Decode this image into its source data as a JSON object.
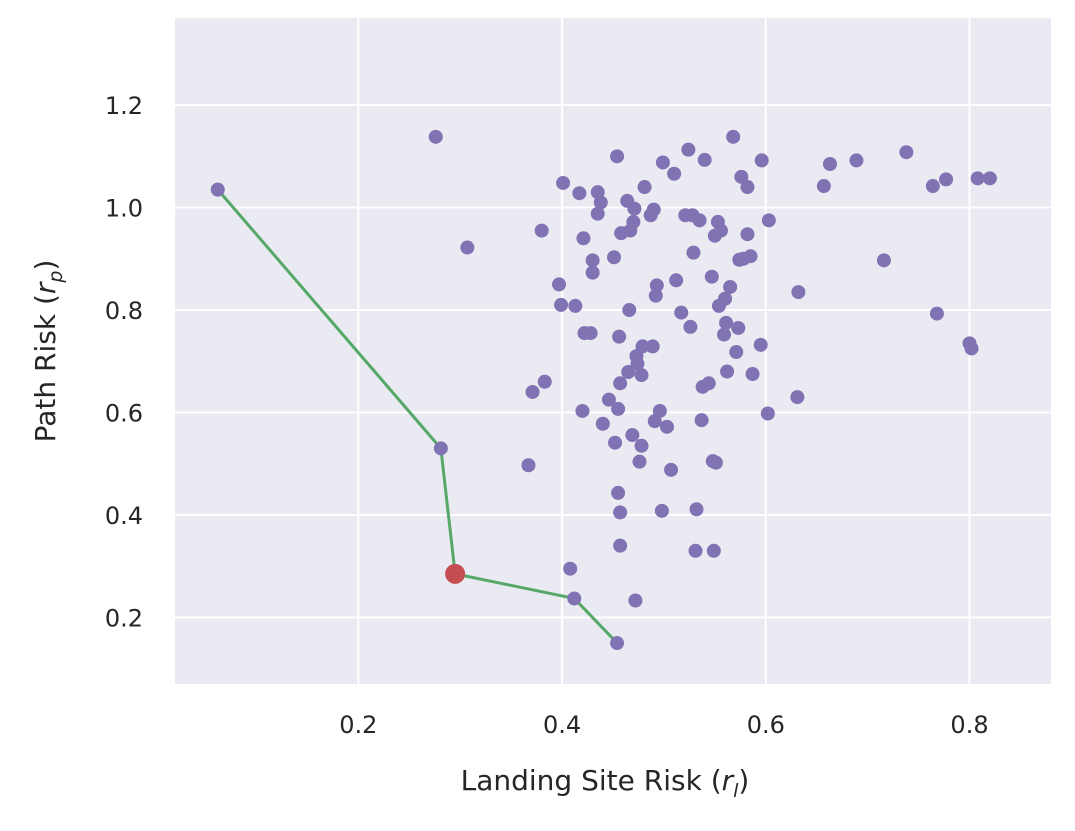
{
  "chart_data": {
    "type": "scatter",
    "title": "",
    "xlabel": "Landing Site Risk (r_l)",
    "xlabel_parts": {
      "main": "Landing Site Risk (",
      "var": "r",
      "sub": "l",
      "close": ")"
    },
    "ylabel": "Path Risk (r_p)",
    "ylabel_parts": {
      "main": "Path Risk (",
      "var": "r",
      "sub": "p",
      "close": ")"
    },
    "xlim": [
      0.02,
      0.88
    ],
    "ylim": [
      0.07,
      1.37
    ],
    "xticks": [
      0.2,
      0.4,
      0.6,
      0.8
    ],
    "xtick_labels": [
      "0.2",
      "0.4",
      "0.6",
      "0.8"
    ],
    "yticks": [
      0.2,
      0.4,
      0.6,
      0.8,
      1.0,
      1.2
    ],
    "ytick_labels": [
      "0.2",
      "0.4",
      "0.6",
      "0.8",
      "1.0",
      "1.2"
    ],
    "grid": true,
    "colors": {
      "background": "#eaeaf2",
      "grid": "#ffffff",
      "points": "#8172b3",
      "frontier": "#55a868",
      "selected": "#c44e52"
    },
    "series": [
      {
        "values": [
          [
            0.062,
            1.035
          ],
          [
            0.276,
            1.138
          ],
          [
            0.307,
            0.922
          ],
          [
            0.367,
            0.497
          ],
          [
            0.371,
            0.64
          ],
          [
            0.38,
            0.955
          ],
          [
            0.383,
            0.66
          ],
          [
            0.397,
            0.85
          ],
          [
            0.399,
            0.81
          ],
          [
            0.401,
            1.048
          ],
          [
            0.408,
            0.295
          ],
          [
            0.413,
            0.808
          ],
          [
            0.417,
            1.028
          ],
          [
            0.42,
            0.603
          ],
          [
            0.421,
            0.94
          ],
          [
            0.422,
            0.755
          ],
          [
            0.428,
            0.755
          ],
          [
            0.43,
            0.873
          ],
          [
            0.43,
            0.897
          ],
          [
            0.435,
            1.03
          ],
          [
            0.435,
            0.988
          ],
          [
            0.438,
            1.01
          ],
          [
            0.44,
            0.578
          ],
          [
            0.446,
            0.625
          ],
          [
            0.451,
            0.903
          ],
          [
            0.452,
            0.541
          ],
          [
            0.454,
            1.1
          ],
          [
            0.455,
            0.607
          ],
          [
            0.455,
            0.443
          ],
          [
            0.456,
            0.748
          ],
          [
            0.457,
            0.405
          ],
          [
            0.457,
            0.34
          ],
          [
            0.457,
            0.657
          ],
          [
            0.458,
            0.95
          ],
          [
            0.464,
            1.013
          ],
          [
            0.465,
            0.679
          ],
          [
            0.466,
            0.8
          ],
          [
            0.467,
            0.955
          ],
          [
            0.469,
            0.556
          ],
          [
            0.47,
            0.972
          ],
          [
            0.471,
            0.998
          ],
          [
            0.472,
            0.233
          ],
          [
            0.473,
            0.71
          ],
          [
            0.474,
            0.695
          ],
          [
            0.476,
            0.504
          ],
          [
            0.478,
            0.535
          ],
          [
            0.478,
            0.673
          ],
          [
            0.479,
            0.729
          ],
          [
            0.481,
            1.04
          ],
          [
            0.487,
            0.985
          ],
          [
            0.489,
            0.729
          ],
          [
            0.49,
            0.996
          ],
          [
            0.491,
            0.583
          ],
          [
            0.492,
            0.828
          ],
          [
            0.493,
            0.848
          ],
          [
            0.496,
            0.603
          ],
          [
            0.498,
            0.408
          ],
          [
            0.499,
            1.088
          ],
          [
            0.503,
            0.572
          ],
          [
            0.507,
            0.488
          ],
          [
            0.51,
            1.066
          ],
          [
            0.512,
            0.858
          ],
          [
            0.517,
            0.795
          ],
          [
            0.521,
            0.985
          ],
          [
            0.524,
            1.113
          ],
          [
            0.526,
            0.767
          ],
          [
            0.528,
            0.985
          ],
          [
            0.529,
            0.912
          ],
          [
            0.531,
            0.33
          ],
          [
            0.532,
            0.411
          ],
          [
            0.535,
            0.975
          ],
          [
            0.537,
            0.585
          ],
          [
            0.538,
            0.65
          ],
          [
            0.54,
            1.093
          ],
          [
            0.544,
            0.657
          ],
          [
            0.547,
            0.865
          ],
          [
            0.548,
            0.505
          ],
          [
            0.549,
            0.33
          ],
          [
            0.55,
            0.945
          ],
          [
            0.551,
            0.502
          ],
          [
            0.553,
            0.972
          ],
          [
            0.554,
            0.808
          ],
          [
            0.556,
            0.955
          ],
          [
            0.559,
            0.752
          ],
          [
            0.56,
            0.822
          ],
          [
            0.561,
            0.775
          ],
          [
            0.562,
            0.68
          ],
          [
            0.565,
            0.845
          ],
          [
            0.568,
            1.138
          ],
          [
            0.571,
            0.718
          ],
          [
            0.573,
            0.765
          ],
          [
            0.574,
            0.898
          ],
          [
            0.576,
            1.06
          ],
          [
            0.578,
            0.9
          ],
          [
            0.582,
            0.948
          ],
          [
            0.582,
            1.04
          ],
          [
            0.585,
            0.905
          ],
          [
            0.587,
            0.675
          ],
          [
            0.595,
            0.732
          ],
          [
            0.596,
            1.092
          ],
          [
            0.602,
            0.598
          ],
          [
            0.603,
            0.975
          ],
          [
            0.631,
            0.63
          ],
          [
            0.632,
            0.835
          ],
          [
            0.657,
            1.042
          ],
          [
            0.663,
            1.085
          ],
          [
            0.689,
            1.092
          ],
          [
            0.716,
            0.897
          ],
          [
            0.738,
            1.108
          ],
          [
            0.764,
            1.042
          ],
          [
            0.768,
            0.793
          ],
          [
            0.777,
            1.055
          ],
          [
            0.8,
            0.735
          ],
          [
            0.802,
            0.725
          ],
          [
            0.808,
            1.057
          ],
          [
            0.82,
            1.057
          ],
          [
            0.281,
            0.53
          ],
          [
            0.412,
            0.237
          ],
          [
            0.454,
            0.15
          ]
        ]
      },
      {
        "type": "line",
        "values": [
          [
            0.062,
            1.035
          ],
          [
            0.281,
            0.53
          ],
          [
            0.295,
            0.285
          ],
          [
            0.412,
            0.237
          ],
          [
            0.454,
            0.15
          ]
        ]
      },
      {
        "values": [
          [
            0.295,
            0.285
          ]
        ]
      }
    ]
  }
}
